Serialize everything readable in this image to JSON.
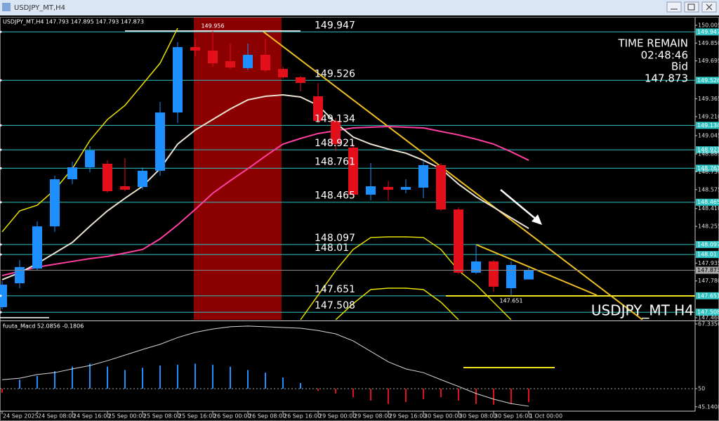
{
  "window_title": "USDJPY_MT,H4",
  "chart_data": [
    {
      "type": "candlestick",
      "info": "USDJPY_MT,H4 147.793 147.895 147.793 147.873",
      "watermark": "USDJPY_MT H4",
      "time_remain_label": "TIME REMAIN",
      "time_remain": "02:48:46",
      "bid_label": "Bid",
      "categories": [
        "24 Sep 2025",
        null,
        "24 Sep 08:00",
        null,
        "24 Sep 16:00",
        null,
        "25 Sep 00:00",
        null,
        "25 Sep 08:00",
        null,
        "25 Sep 16:00",
        null,
        "26 Sep 00:00",
        null,
        "26 Sep 08:00",
        null,
        "26 Sep 16:00",
        null,
        "29 Sep 00:00",
        null,
        "29 Sep 08:00",
        null,
        "29 Sep 16:00",
        null,
        "30 Sep 00:00",
        null,
        "30 Sep 08:00",
        null,
        "30 Sep 16:00",
        null,
        "1 Oct 00:00"
      ],
      "open": [
        147.552,
        147.76,
        147.888,
        148.255,
        148.665,
        148.769,
        148.8,
        148.604,
        148.598,
        148.739,
        149.246,
        149.815,
        149.785,
        149.693,
        149.632,
        149.748,
        149.625,
        149.552,
        149.387,
        149.173,
        148.941,
        148.531,
        148.598,
        148.574,
        148.592,
        148.788,
        148.402,
        147.852,
        147.95,
        147.717,
        147.793
      ],
      "high": [
        147.778,
        147.962,
        148.298,
        148.696,
        148.818,
        148.953,
        148.83,
        148.849,
        148.769,
        149.338,
        149.858,
        149.889,
        149.956,
        149.846,
        149.846,
        149.889,
        149.644,
        149.564,
        149.503,
        149.197,
        148.971,
        148.806,
        148.647,
        148.665,
        148.83,
        148.806,
        148.421,
        148.097,
        147.962,
        147.95,
        147.895
      ],
      "low": [
        147.534,
        147.717,
        147.87,
        148.207,
        148.622,
        148.726,
        148.549,
        148.561,
        148.574,
        148.696,
        149.155,
        149.736,
        149.644,
        149.625,
        149.613,
        149.601,
        149.54,
        149.43,
        149.155,
        148.91,
        148.512,
        148.482,
        148.482,
        148.543,
        148.5,
        148.39,
        147.84,
        147.84,
        147.687,
        147.651,
        147.793
      ],
      "close": [
        147.748,
        147.901,
        148.255,
        148.665,
        148.769,
        148.916,
        148.561,
        148.574,
        148.739,
        149.246,
        149.815,
        149.785,
        149.674,
        149.638,
        149.748,
        149.613,
        149.552,
        149.503,
        149.173,
        148.971,
        148.531,
        148.604,
        148.574,
        148.598,
        148.788,
        148.402,
        147.852,
        147.95,
        147.73,
        147.919,
        147.873
      ],
      "up_color": "#1e8fff",
      "down_color": "#e3101c",
      "levels": [
        149.947,
        149.526,
        149.134,
        148.921,
        148.761,
        148.465,
        148.097,
        148.01,
        147.651,
        147.508
      ],
      "level_color": "#2fc2c2",
      "ylim": [
        147.442,
        150.072
      ],
      "yticks": [
        150.005,
        {
          "value": 149.85,
          "label": "149.850"
        },
        149.695,
        149.365,
        {
          "value": 149.21,
          "label": "149.210"
        },
        149.045,
        148.885,
        {
          "value": 148.73,
          "label": "148.730"
        },
        148.575,
        {
          "value": 148.41,
          "label": "148.410"
        },
        148.255,
        147.935,
        {
          "value": 147.78,
          "label": "147.780"
        },
        {
          "value": 147.46,
          "label": "147.460"
        }
      ],
      "overlays": [
        {
          "color": "#ff3fa0",
          "values": [
            147.827,
            147.864,
            147.901,
            147.925,
            147.95,
            147.974,
            147.993,
            148.023,
            148.054,
            148.146,
            148.268,
            148.402,
            148.543,
            148.653,
            148.757,
            148.867,
            148.971,
            149.02,
            149.063,
            149.087,
            149.112,
            149.118,
            149.124,
            149.118,
            149.112,
            149.081,
            149.051,
            149.014,
            148.971,
            148.904,
            148.83
          ]
        },
        {
          "color": "#ece2d2",
          "values": [
            147.791,
            147.852,
            147.931,
            148.023,
            148.115,
            148.256,
            148.39,
            148.5,
            148.604,
            148.757,
            148.971,
            149.093,
            149.185,
            149.277,
            149.356,
            149.387,
            149.399,
            149.381,
            149.308,
            149.155,
            149.032,
            148.971,
            148.928,
            148.892,
            148.83,
            148.757,
            148.623,
            148.512,
            148.421,
            148.329,
            148.237
          ]
        },
        {
          "color": "#e8e000",
          "values": [
            148.207,
            148.39,
            148.439,
            148.574,
            148.757,
            149.002,
            149.185,
            149.308,
            149.491,
            149.675,
            149.98,
            null,
            null,
            null,
            null,
            null,
            null,
            null,
            null,
            null,
            null,
            null,
            null,
            null,
            null,
            null,
            null,
            null,
            null,
            null,
            null
          ]
        },
        {
          "color": "#e8e000",
          "values": [
            null,
            null,
            null,
            null,
            null,
            null,
            null,
            null,
            null,
            null,
            null,
            null,
            null,
            null,
            null,
            null,
            null,
            147.442,
            147.656,
            147.87,
            148.054,
            148.158,
            148.164,
            148.164,
            148.158,
            148.054,
            147.87,
            147.748,
            147.595,
            147.442,
            null
          ]
        },
        {
          "color": "#e8e000",
          "values": [
            null,
            null,
            null,
            null,
            null,
            null,
            null,
            null,
            null,
            null,
            null,
            null,
            null,
            null,
            null,
            null,
            null,
            null,
            null,
            147.442,
            147.583,
            147.705,
            147.717,
            147.717,
            147.705,
            147.595,
            147.442,
            null,
            null,
            null,
            null
          ]
        }
      ]
    },
    {
      "type": "macd",
      "label": "fuuta_Macd 52.0856 -0.1806",
      "values": [
        48.9,
        52.4,
        53.4,
        54.7,
        55.9,
        56.7,
        55.9,
        55.0,
        55.6,
        56.2,
        56.4,
        56.7,
        56.4,
        55.9,
        55.0,
        54.3,
        53.0,
        51.5,
        49.4,
        48.7,
        47.7,
        46.8,
        45.9,
        46.4,
        47.2,
        47.7,
        46.8,
        45.9,
        45.7,
        45.9,
        46.4
      ],
      "signal": [
        52.4,
        52.8,
        53.8,
        54.3,
        55.3,
        56.2,
        57.5,
        59.0,
        60.5,
        61.9,
        63.7,
        65.1,
        66.0,
        66.6,
        66.8,
        66.6,
        66.4,
        66.2,
        65.6,
        64.7,
        62.8,
        60.0,
        57.2,
        55.3,
        54.3,
        52.4,
        50.6,
        48.7,
        47.2,
        46.0,
        45.3
      ],
      "up_color": "#1e8fff",
      "down_color": "#e3101c",
      "signal_color": "#d8d8d8",
      "ylim": [
        43.97,
        67.9
      ],
      "yticks": [
        67.3356,
        50,
        45.1408
      ]
    }
  ]
}
